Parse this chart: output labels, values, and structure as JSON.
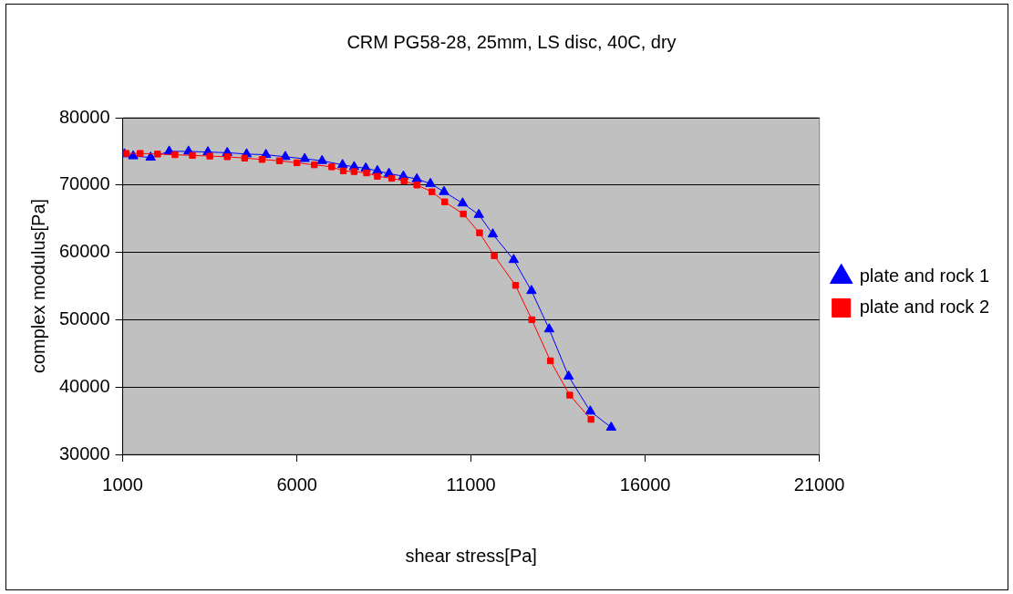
{
  "chart_data": {
    "type": "line",
    "title": "CRM PG58-28, 25mm, LS disc, 40C, dry",
    "xlabel": "shear stress[Pa]",
    "ylabel": "complex modulus[Pa]",
    "xlim": [
      1000,
      21000
    ],
    "xticks": [
      1000,
      6000,
      11000,
      16000,
      21000
    ],
    "ylim": [
      30000,
      80000
    ],
    "yticks": [
      30000,
      40000,
      50000,
      60000,
      70000,
      80000
    ],
    "grid": "y",
    "legend": "right",
    "series": [
      {
        "name": "plate and rock 1",
        "color": "#0000ff",
        "marker": "triangle",
        "x": [
          1050,
          1300,
          1800,
          2333,
          2889,
          3444,
          4000,
          4556,
          5111,
          5667,
          6222,
          6722,
          7310,
          7643,
          7977,
          8310,
          8643,
          9057,
          9443,
          9833,
          10223,
          10757,
          11223,
          11623,
          12223,
          12733,
          13243,
          13800,
          14423,
          15023
        ],
        "values": [
          74600,
          74300,
          74100,
          75000,
          75000,
          74900,
          74800,
          74600,
          74500,
          74200,
          73900,
          73600,
          73000,
          72700,
          72500,
          72100,
          71700,
          71300,
          70900,
          70200,
          69000,
          67300,
          65600,
          62700,
          58900,
          54300,
          48600,
          41600,
          36400,
          34000
        ]
      },
      {
        "name": "plate and rock 2",
        "color": "#ff0000",
        "marker": "square",
        "x": [
          1100,
          1500,
          2000,
          2500,
          3000,
          3500,
          4000,
          4500,
          5000,
          5500,
          6000,
          6500,
          7000,
          7333,
          7643,
          8000,
          8310,
          8723,
          9077,
          9443,
          9877,
          10243,
          10777,
          11243,
          11667,
          12277,
          12743,
          13277,
          13833,
          14443
        ],
        "values": [
          74700,
          74700,
          74600,
          74500,
          74400,
          74300,
          74200,
          74000,
          73800,
          73600,
          73300,
          73000,
          72700,
          72100,
          72000,
          71800,
          71300,
          71000,
          70600,
          70000,
          69000,
          67500,
          65700,
          62900,
          59500,
          55100,
          50000,
          43900,
          38800,
          35200
        ]
      }
    ]
  }
}
